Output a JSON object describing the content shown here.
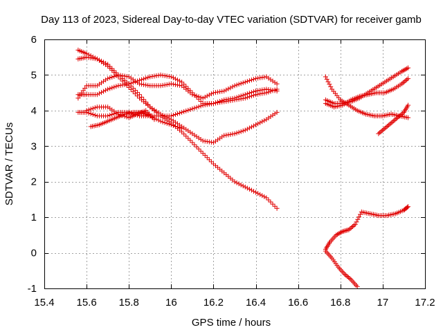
{
  "chart_data": {
    "type": "scatter",
    "title": "Day 113 of 2023, Sidereal Day-to-day VTEC variation (SDTVAR) for receiver gamb",
    "xlabel": "GPS time / hours",
    "ylabel": "SDTVAR / TECUs",
    "xlim": [
      15.4,
      17.2
    ],
    "ylim": [
      -1,
      6
    ],
    "xticks": [
      15.4,
      15.6,
      15.8,
      16.0,
      16.2,
      16.4,
      16.6,
      16.8,
      17.0,
      17.2
    ],
    "xtick_labels": [
      "15.4",
      "15.6",
      "15.8",
      "16",
      "16.2",
      "16.4",
      "16.6",
      "16.8",
      "17",
      "17.2"
    ],
    "yticks": [
      -1,
      0,
      1,
      2,
      3,
      4,
      5,
      6
    ],
    "ytick_labels": [
      "-1",
      "0",
      "1",
      "2",
      "3",
      "4",
      "5",
      "6"
    ],
    "grid": true,
    "marker": "plus",
    "color": "#e00000",
    "series": [
      {
        "name": "s1",
        "x": [
          15.56,
          15.6,
          15.65,
          15.7,
          15.75,
          15.8,
          15.85,
          15.9,
          15.95,
          16.0,
          16.05,
          16.1,
          16.15,
          16.2,
          16.25,
          16.3,
          16.35,
          16.4,
          16.45,
          16.5
        ],
        "y": [
          5.7,
          5.6,
          5.45,
          5.25,
          4.95,
          4.65,
          4.35,
          4.1,
          3.85,
          3.65,
          3.4,
          3.1,
          2.8,
          2.5,
          2.25,
          2.0,
          1.85,
          1.7,
          1.55,
          1.25
        ]
      },
      {
        "name": "s2",
        "x": [
          15.56,
          15.6,
          15.65,
          15.7,
          15.75,
          15.8,
          15.85,
          15.9,
          15.95,
          16.0,
          16.05,
          16.1,
          16.15,
          16.2,
          16.25,
          16.3,
          16.35,
          16.4,
          16.45,
          16.5
        ],
        "y": [
          5.45,
          5.5,
          5.45,
          5.3,
          5.0,
          4.75,
          4.45,
          4.1,
          3.9,
          3.75,
          3.55,
          3.35,
          3.15,
          3.1,
          3.3,
          3.35,
          3.45,
          3.6,
          3.75,
          3.95
        ]
      },
      {
        "name": "s3",
        "x": [
          15.56,
          15.6,
          15.65,
          15.7,
          15.75,
          15.8,
          15.85,
          15.9,
          15.95,
          16.0,
          16.05,
          16.1,
          16.15,
          16.2,
          16.25,
          16.3,
          16.35,
          16.4,
          16.45,
          16.5
        ],
        "y": [
          4.35,
          4.7,
          4.7,
          4.9,
          5.0,
          4.95,
          4.75,
          4.7,
          4.7,
          4.75,
          4.7,
          4.45,
          4.35,
          4.5,
          4.55,
          4.7,
          4.8,
          4.9,
          4.95,
          4.75
        ]
      },
      {
        "name": "s4",
        "x": [
          15.56,
          15.6,
          15.65,
          15.7,
          15.75,
          15.8,
          15.85,
          15.9,
          15.95,
          16.0,
          16.05,
          16.1,
          16.15,
          16.2,
          16.25,
          16.3,
          16.35,
          16.4,
          16.45,
          16.5
        ],
        "y": [
          4.45,
          4.45,
          4.45,
          4.6,
          4.7,
          4.75,
          4.85,
          4.95,
          5.0,
          4.95,
          4.8,
          4.5,
          4.2,
          4.2,
          4.3,
          4.35,
          4.45,
          4.55,
          4.6,
          4.55
        ]
      },
      {
        "name": "s5",
        "x": [
          15.56,
          15.6,
          15.65,
          15.7,
          15.75,
          15.8,
          15.85,
          15.9,
          15.95,
          16.0,
          16.05,
          16.1,
          16.15,
          16.2,
          16.25,
          16.3,
          16.35,
          16.4,
          16.45,
          16.5
        ],
        "y": [
          3.95,
          3.95,
          3.85,
          3.85,
          3.95,
          3.95,
          3.85,
          3.85,
          3.85,
          3.85,
          3.95,
          4.05,
          4.15,
          4.2,
          4.25,
          4.3,
          4.35,
          4.45,
          4.5,
          4.6
        ]
      },
      {
        "name": "s6",
        "x": [
          15.62,
          15.66,
          15.7,
          15.74,
          15.78,
          15.82,
          15.86,
          15.9,
          15.95,
          16.0,
          16.05
        ],
        "y": [
          3.55,
          3.6,
          3.7,
          3.8,
          3.9,
          3.95,
          3.95,
          3.85,
          3.7,
          3.6,
          3.5
        ]
      },
      {
        "name": "s7",
        "x": [
          15.6,
          15.65,
          15.7,
          15.75,
          15.8,
          15.84,
          15.88,
          15.92
        ],
        "y": [
          4.0,
          4.1,
          4.1,
          3.9,
          3.8,
          3.9,
          4.0,
          3.75
        ]
      },
      {
        "name": "s8",
        "x": [
          16.73,
          16.76,
          16.8,
          16.84,
          16.88,
          16.92,
          16.96,
          17.0,
          17.04,
          17.08,
          17.12
        ],
        "y": [
          4.95,
          4.6,
          4.3,
          4.15,
          4.0,
          3.9,
          3.85,
          3.85,
          3.9,
          3.85,
          3.8
        ]
      },
      {
        "name": "s9",
        "x": [
          16.73,
          16.77,
          16.81,
          16.85,
          16.89,
          16.93,
          16.97,
          17.01,
          17.05,
          17.09,
          17.12
        ],
        "y": [
          4.3,
          4.2,
          4.2,
          4.25,
          4.35,
          4.5,
          4.65,
          4.8,
          4.95,
          5.1,
          5.2
        ]
      },
      {
        "name": "s10",
        "x": [
          16.73,
          16.77,
          16.81,
          16.85,
          16.89,
          16.93,
          16.97,
          17.01,
          17.05,
          17.09,
          17.12
        ],
        "y": [
          4.2,
          4.1,
          4.15,
          4.3,
          4.4,
          4.45,
          4.5,
          4.5,
          4.6,
          4.75,
          4.9
        ]
      },
      {
        "name": "s11",
        "x": [
          16.98,
          17.01,
          17.04,
          17.07,
          17.1,
          17.12
        ],
        "y": [
          3.35,
          3.5,
          3.65,
          3.8,
          3.95,
          4.15
        ]
      },
      {
        "name": "s12",
        "x": [
          16.73,
          16.75,
          16.78,
          16.81,
          16.84,
          16.87,
          16.9,
          16.94,
          16.98,
          17.02,
          17.06,
          17.1,
          17.12
        ],
        "y": [
          0.1,
          0.3,
          0.5,
          0.6,
          0.65,
          0.8,
          1.15,
          1.1,
          1.05,
          1.05,
          1.1,
          1.2,
          1.3
        ]
      },
      {
        "name": "s13",
        "x": [
          16.73,
          16.76,
          16.79,
          16.82,
          16.85,
          16.88
        ],
        "y": [
          0.05,
          -0.15,
          -0.4,
          -0.6,
          -0.75,
          -0.95
        ]
      }
    ]
  }
}
